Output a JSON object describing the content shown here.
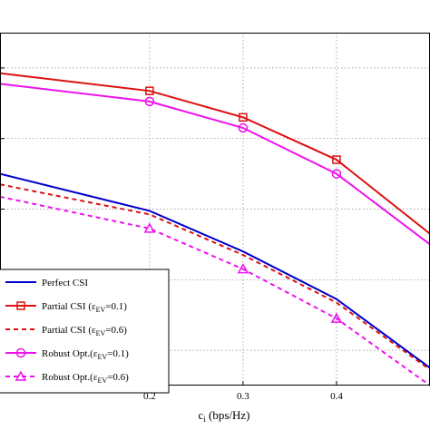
{
  "chart_data": {
    "type": "line",
    "xlabel": "c_i (bps/Hz)",
    "xlabel_main": "c",
    "xlabel_sub": "i",
    "xlabel_rest": " (bps/Hz)",
    "xlim": [
      0.04,
      0.5
    ],
    "ylim": [
      0,
      1
    ],
    "x_ticks": [
      0.2,
      0.3,
      0.4
    ],
    "x_tick_labels": [
      "0.2",
      "0.3",
      "0.4"
    ],
    "y_ticks": [
      0.1,
      0.3,
      0.5,
      0.7,
      0.9
    ],
    "grid": true,
    "legend_position": "bottom-left",
    "series": [
      {
        "name": "Perfect CSI",
        "legend_main": "Perfect CSI",
        "color": "#0000cc",
        "dash": "solid",
        "marker": "none",
        "x": [
          0.04,
          0.2,
          0.3,
          0.4,
          0.5
        ],
        "y": [
          0.6,
          0.495,
          0.38,
          0.245,
          0.05
        ]
      },
      {
        "name": "Partial CSI (ε_EV=0.1)",
        "legend_main": "Partial CSI (ε",
        "legend_sub": "EV",
        "legend_rest": "=0.1)",
        "color": "#dd1111",
        "dash": "solid",
        "marker": "square",
        "x": [
          0.04,
          0.2,
          0.3,
          0.4,
          0.5
        ],
        "y": [
          0.885,
          0.835,
          0.76,
          0.64,
          0.43
        ]
      },
      {
        "name": "Partial CSI (ε_EV=0.6)",
        "legend_main": "Partial CSI (ε",
        "legend_sub": "EV",
        "legend_rest": "=0.6)",
        "color": "#dd1111",
        "dash": "dashed",
        "marker": "none",
        "x": [
          0.04,
          0.2,
          0.3,
          0.4,
          0.5
        ],
        "y": [
          0.57,
          0.485,
          0.37,
          0.235,
          0.045
        ]
      },
      {
        "name": "Robust Opt.(ε_EV=0.1)",
        "legend_main": "Robust Opt.(ε",
        "legend_sub": "EV",
        "legend_rest": "=0.1)",
        "color": "#ee11ee",
        "dash": "solid",
        "marker": "circle",
        "x": [
          0.04,
          0.2,
          0.3,
          0.4,
          0.5
        ],
        "y": [
          0.855,
          0.805,
          0.73,
          0.6,
          0.4
        ]
      },
      {
        "name": "Robust Opt.(ε_EV=0.6)",
        "legend_main": "Robust Opt.(ε",
        "legend_sub": "EV",
        "legend_rest": "=0.6)",
        "color": "#ee11ee",
        "dash": "dashed",
        "marker": "triangle",
        "x": [
          0.04,
          0.2,
          0.3,
          0.4,
          0.5
        ],
        "y": [
          0.535,
          0.445,
          0.33,
          0.19,
          0.0
        ]
      }
    ]
  }
}
